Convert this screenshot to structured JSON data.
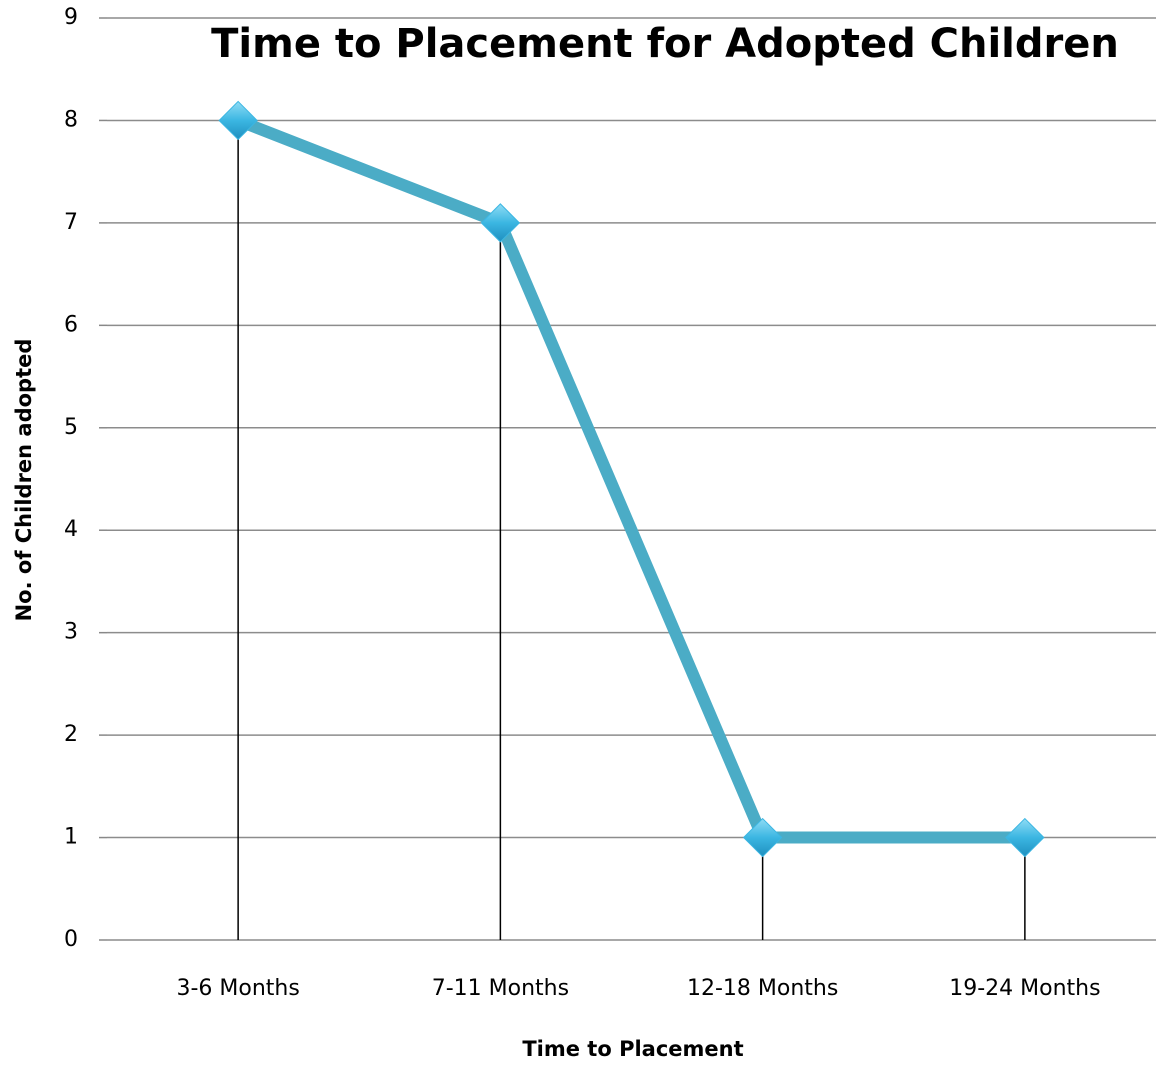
{
  "chart_data": {
    "type": "line",
    "title": "Time to Placement for Adopted Children",
    "x_label": "Time to Placement",
    "y_label": "No. of Children adopted",
    "categories": [
      "3-6 Months",
      "7-11 Months",
      "12-18 Months",
      "19-24 Months"
    ],
    "series": [
      {
        "name": "No. of Children adopted",
        "color": "#4bacc6",
        "values": [
          8,
          7,
          1,
          1
        ]
      }
    ],
    "ylim": [
      0,
      9
    ],
    "yticks": [
      0,
      1,
      2,
      3,
      4,
      5,
      6,
      7,
      8,
      9
    ],
    "grid": true,
    "drop_lines": true,
    "marker": "diamond",
    "marker_color": "#3bb6e2"
  }
}
